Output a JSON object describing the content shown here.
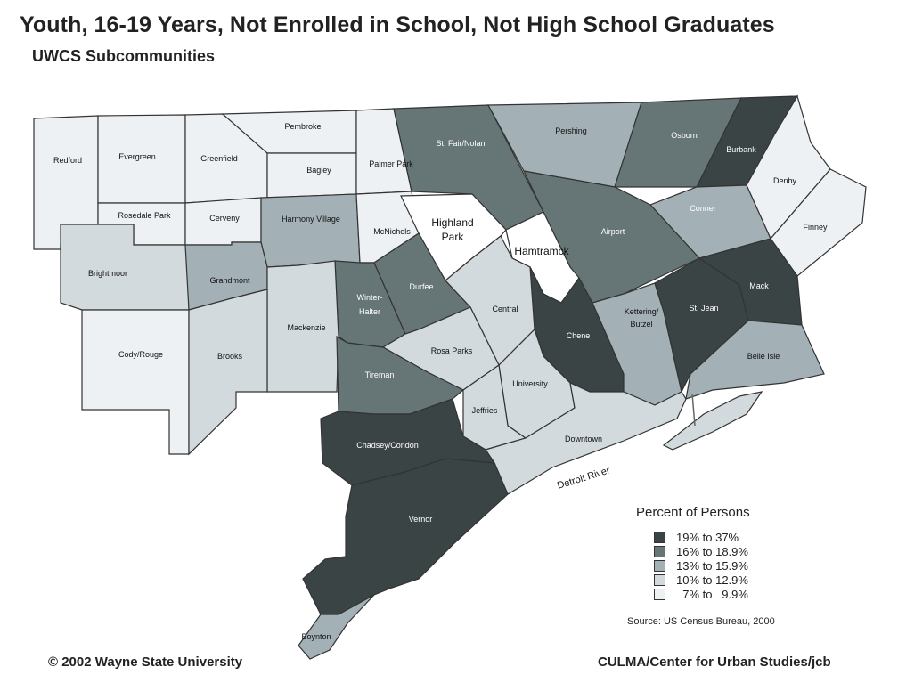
{
  "title": "Youth, 16-19 Years, Not Enrolled in School, Not High School Graduates",
  "subtitle": "UWCS Subcommunities",
  "legend": {
    "title": "Percent of Persons",
    "items": [
      {
        "label": "19% to 37%",
        "color": "#3a4444"
      },
      {
        "label": "16% to 18.9%",
        "color": "#667676"
      },
      {
        "label": "13% to 15.9%",
        "color": "#a3b1b7"
      },
      {
        "label": "10% to 12.9%",
        "color": "#d3dadd"
      },
      {
        "label": "  7% to   9.9%",
        "color": "#eef1f4"
      }
    ]
  },
  "source": "Source: US Census Bureau, 2000",
  "footer_left": "© 2002  Wayne State University",
  "footer_right": "CULMA/Center for Urban Studies/jcb",
  "map_labels": {
    "redford": "Redford",
    "evergreen": "Evergreen",
    "greenfield": "Greenfield",
    "pembroke": "Pembroke",
    "bagley": "Bagley",
    "palmer_park": "Palmer Park",
    "st_fair_nolan": "St. Fair/Nolan",
    "pershing": "Pershing",
    "osborn": "Osborn",
    "burbank": "Burbank",
    "denby": "Denby",
    "finney": "Finney",
    "conner": "Conner",
    "airport": "Airport",
    "rosedale_park": "Rosedale Park",
    "cerveny": "Cerveny",
    "harmony_village": "Harmony Village",
    "mcnichols": "McNichols",
    "highland_park_1": "Highland",
    "highland_park_2": "Park",
    "hamtramck": "Hamtramck",
    "brightmoor": "Brightmoor",
    "grandmont": "Grandmont",
    "winter_halter_1": "Winter-",
    "winter_halter_2": "Halter",
    "durfee": "Durfee",
    "central": "Central",
    "chene": "Chene",
    "kettering_1": "Kettering/",
    "kettering_2": "Butzel",
    "st_jean": "St. Jean",
    "mack": "Mack",
    "mackenzie": "Mackenzie",
    "cody_rouge": "Cody/Rouge",
    "brooks": "Brooks",
    "rosa_parks": "Rosa Parks",
    "tireman": "Tireman",
    "university": "University",
    "jeffries": "Jeffries",
    "belle_isle": "Belle Isle",
    "downtown": "Downtown",
    "chadsey_condon": "Chadsey/Condon",
    "detroit_river": "Detroit River",
    "vernor": "Vernor",
    "boynton": "Boynton"
  },
  "region_classes": {
    "redford": "#eef1f4",
    "evergreen": "#eef1f4",
    "greenfield": "#eef1f4",
    "pembroke": "#eef1f4",
    "bagley": "#eef1f4",
    "palmer_park": "#eef1f4",
    "st_fair_nolan": "#667676",
    "pershing": "#a3b1b7",
    "osborn": "#667676",
    "burbank": "#3a4444",
    "denby": "#eef1f4",
    "finney": "#eef1f4",
    "conner": "#a3b1b7",
    "airport": "#667676",
    "rosedale_park": "#eef1f4",
    "cerveny": "#eef1f4",
    "harmony_village": "#a3b1b7",
    "mcnichols": "#eef1f4",
    "highland_park": "#ffffff",
    "hamtramck": "#ffffff",
    "brightmoor": "#d3dadd",
    "grandmont": "#a3b1b7",
    "winter_halter": "#667676",
    "durfee": "#667676",
    "central": "#d3dadd",
    "chene": "#3a4444",
    "kettering": "#a3b1b7",
    "st_jean": "#3a4444",
    "mack": "#3a4444",
    "mackenzie": "#d3dadd",
    "cody_rouge": "#eef1f4",
    "brooks": "#d3dadd",
    "rosa_parks": "#d3dadd",
    "tireman": "#667676",
    "university": "#d3dadd",
    "jeffries": "#d3dadd",
    "belle_isle": "#a3b1b7",
    "downtown": "#d3dadd",
    "chadsey_condon": "#3a4444",
    "vernor": "#3a4444",
    "boynton": "#a3b1b7",
    "belle_isle_island": "#d3dadd"
  }
}
